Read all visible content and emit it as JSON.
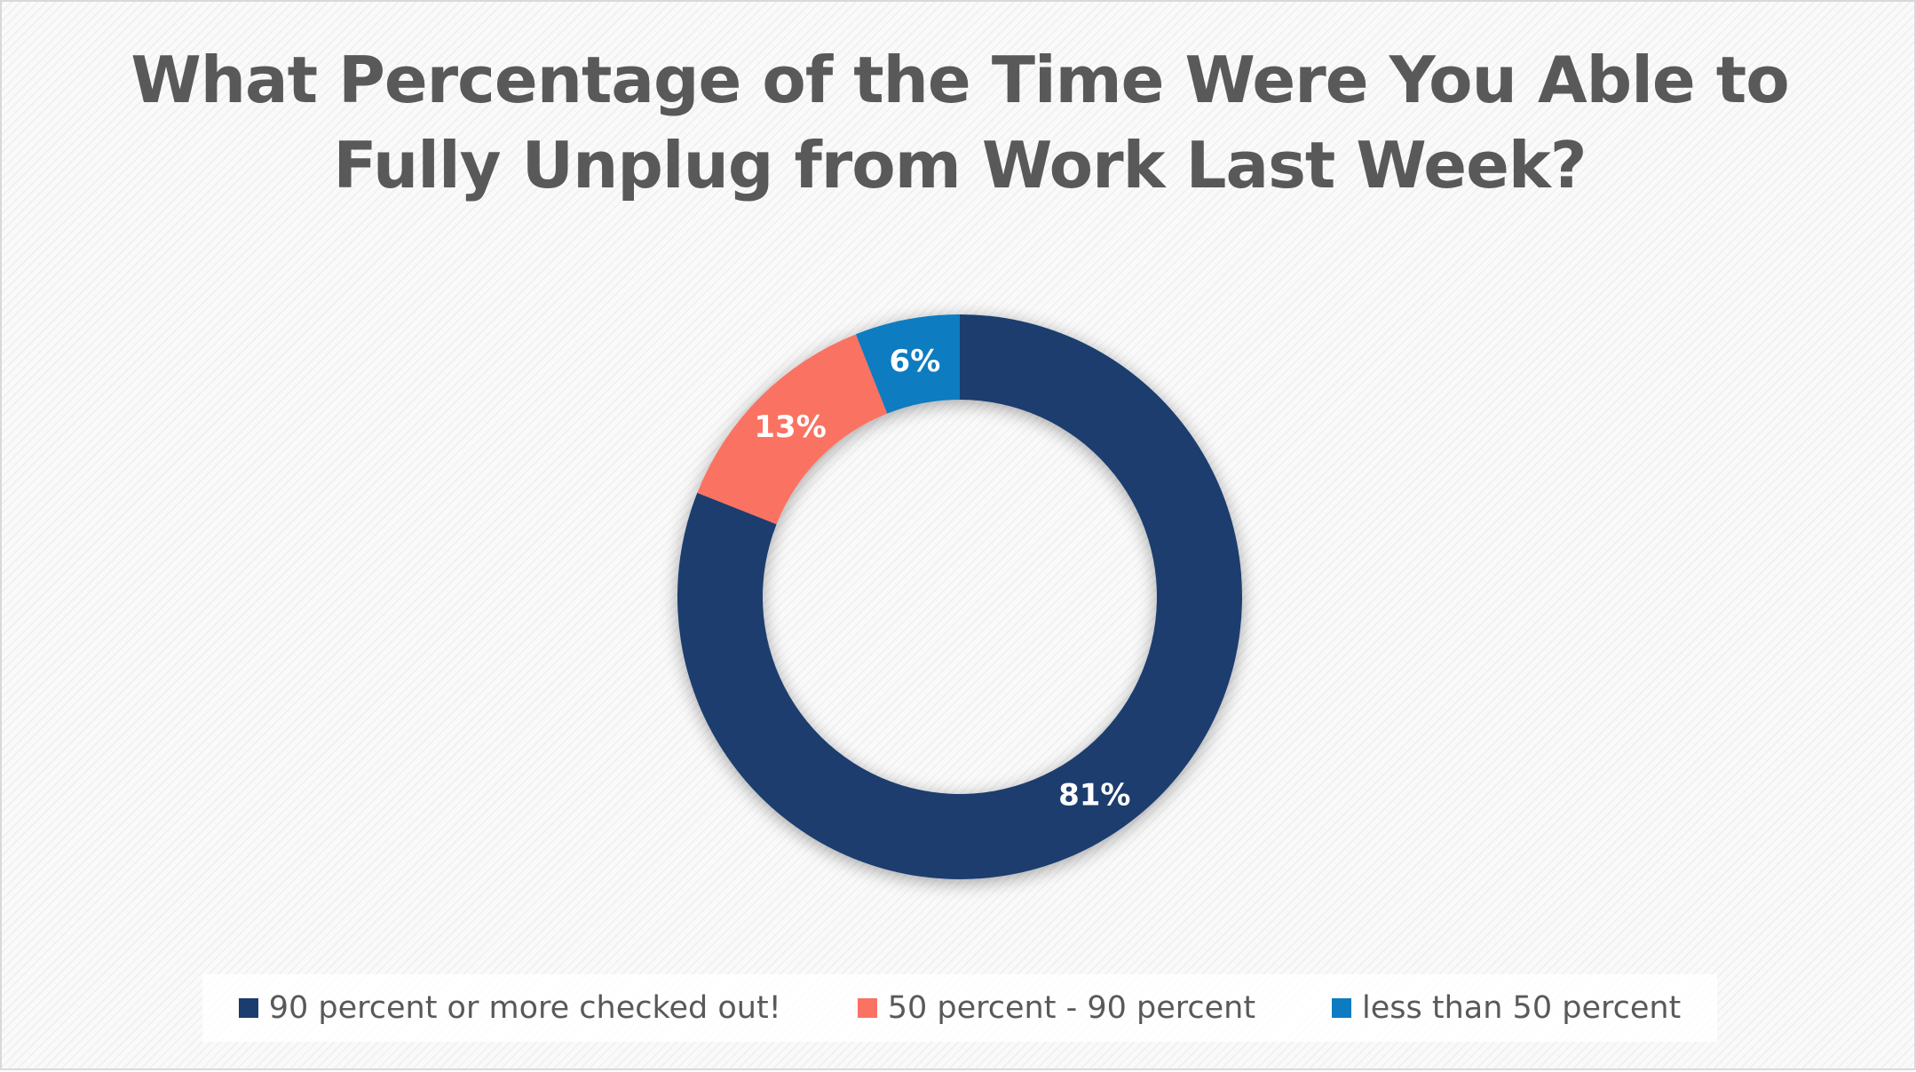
{
  "chart_data": {
    "type": "pie",
    "variant": "donut",
    "title": "What Percentage of the Time Were You Able to Fully Unplug from Work Last Week?",
    "slices": [
      {
        "label": "90 percent or more checked out!",
        "value": 81,
        "display": "81%",
        "color": "#1b3c6e"
      },
      {
        "label": "50 percent - 90 percent",
        "value": 13,
        "display": "13%",
        "color": "#fa7262"
      },
      {
        "label": "less than 50 percent",
        "value": 6,
        "display": "6%",
        "color": "#0c7bc1"
      }
    ],
    "legend_position": "bottom"
  }
}
